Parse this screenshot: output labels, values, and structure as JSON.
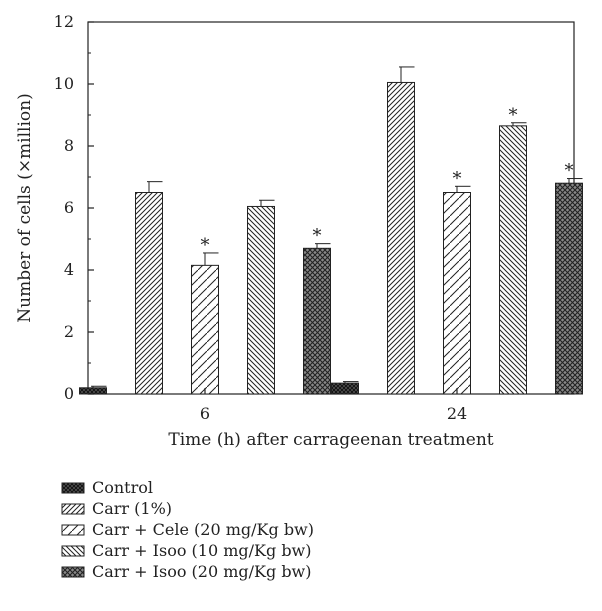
{
  "chart_data": {
    "type": "bar",
    "xlabel": "Time (h) after carrageenan treatment",
    "ylabel": "Number of cells (×million)",
    "ylim": [
      0,
      12
    ],
    "yticks": [
      "0",
      "2",
      "4",
      "6",
      "8",
      "10",
      "12"
    ],
    "categories": [
      "6",
      "24"
    ],
    "grid": false,
    "legend_position": "bottom",
    "series": [
      {
        "name": "Control",
        "pattern": "crosshatch-dark",
        "values": [
          0.2,
          0.35
        ],
        "errors": [
          0.05,
          0.05
        ],
        "significant": [
          false,
          false
        ]
      },
      {
        "name": "Carr (1%)",
        "pattern": "diagonal-dense",
        "values": [
          6.5,
          10.05
        ],
        "errors": [
          0.35,
          0.5
        ],
        "significant": [
          false,
          false
        ]
      },
      {
        "name": "Carr + Cele (20 mg/Kg bw)",
        "pattern": "diagonal-sparse",
        "values": [
          4.15,
          6.5
        ],
        "errors": [
          0.4,
          0.2
        ],
        "significant": [
          true,
          true
        ]
      },
      {
        "name": "Carr + Isoo (10 mg/Kg bw)",
        "pattern": "backslash",
        "values": [
          6.05,
          8.65
        ],
        "errors": [
          0.2,
          0.1
        ],
        "significant": [
          false,
          true
        ]
      },
      {
        "name": "Carr + Isoo (20 mg/Kg bw)",
        "pattern": "crosshatch-light",
        "values": [
          4.7,
          6.8
        ],
        "errors": [
          0.15,
          0.15
        ],
        "significant": [
          true,
          true
        ]
      }
    ],
    "significance_marker": "*"
  }
}
